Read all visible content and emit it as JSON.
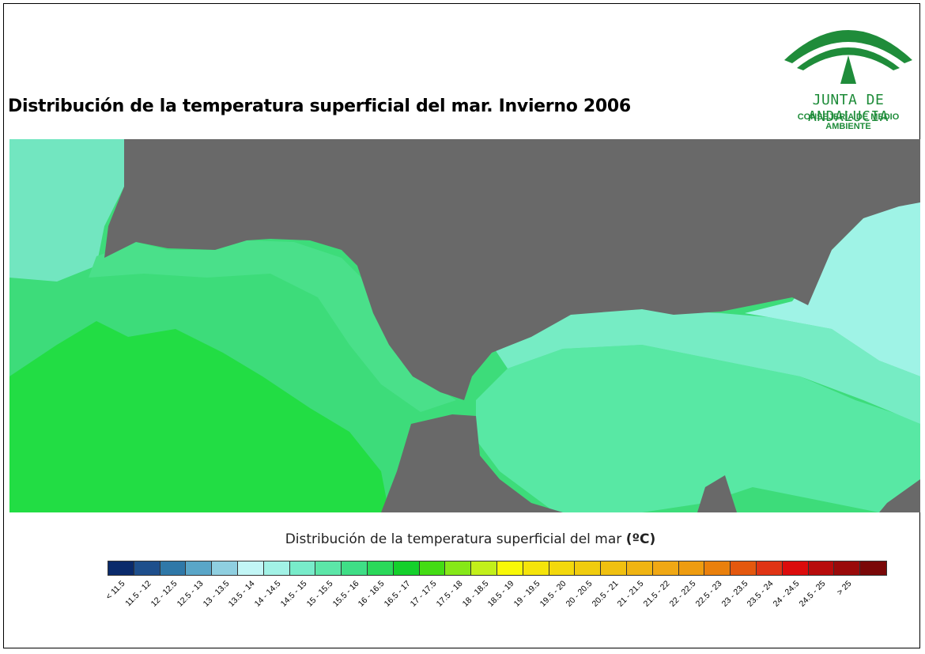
{
  "title": "Distribución de la temperatura superficial del mar. Invierno 2006",
  "logo": {
    "name": "JUNTA DE ANDALUCIA",
    "subtitle": "CONSEJERÍA DE MEDIO AMBIENTE",
    "brand_color": "#1f8c3a"
  },
  "map": {
    "land_color": "#696969",
    "region_colors": {
      "bay_outer": "#72e6c0",
      "west_mid": "#3ddc7a",
      "west_core": "#22dd44",
      "strait": "#4ae08a",
      "alboran_west": "#58e8a4",
      "alboran_mid": "#76ecc4",
      "east_coast": "#9ff3e6"
    }
  },
  "legend": {
    "title_main": "Distribución de la temperatura superficial del mar",
    "title_unit": "(ºC)",
    "classes": [
      {
        "label": "< 11.5",
        "color": "#0a2a6b"
      },
      {
        "label": "11.5 - 12",
        "color": "#1e4f8c"
      },
      {
        "label": "12 - 12.5",
        "color": "#2f78a8"
      },
      {
        "label": "12.5 - 13",
        "color": "#5aa6c8"
      },
      {
        "label": "13 - 13.5",
        "color": "#8fcfe0"
      },
      {
        "label": "13.5 - 14",
        "color": "#c2f6f6"
      },
      {
        "label": "14 - 14.5",
        "color": "#a2f2e6"
      },
      {
        "label": "14.5 - 15",
        "color": "#78ecca"
      },
      {
        "label": "15 - 15.5",
        "color": "#5ce6a8"
      },
      {
        "label": "15.5 - 16",
        "color": "#3fde86"
      },
      {
        "label": "16 - 16.5",
        "color": "#2ad85a"
      },
      {
        "label": "16.5 - 17",
        "color": "#14d02c"
      },
      {
        "label": "17 - 17.5",
        "color": "#44dc14"
      },
      {
        "label": "17.5 - 18",
        "color": "#86e818"
      },
      {
        "label": "18 - 18.5",
        "color": "#c2f01a"
      },
      {
        "label": "18.5 - 19",
        "color": "#f8f806"
      },
      {
        "label": "19 - 19.5",
        "color": "#f5e40a"
      },
      {
        "label": "19.5 - 20",
        "color": "#f3d80c"
      },
      {
        "label": "20 - 20.5",
        "color": "#f0cc0e"
      },
      {
        "label": "20.5 - 21",
        "color": "#f0c010"
      },
      {
        "label": "21 - 21.5",
        "color": "#f0b412"
      },
      {
        "label": "21.5 - 22",
        "color": "#f0a814"
      },
      {
        "label": "22 - 22.5",
        "color": "#ee9c10"
      },
      {
        "label": "22.5 - 23",
        "color": "#ea800c"
      },
      {
        "label": "23 - 23.5",
        "color": "#e4580e"
      },
      {
        "label": "23.5 - 24",
        "color": "#e03414"
      },
      {
        "label": "24 - 24.5",
        "color": "#dc0c0c"
      },
      {
        "label": "24.5 - 25",
        "color": "#b80c0c"
      },
      {
        "label": "> 25",
        "color": "#9a0a0a"
      },
      {
        "label": "",
        "color": "#7a0808"
      }
    ]
  }
}
